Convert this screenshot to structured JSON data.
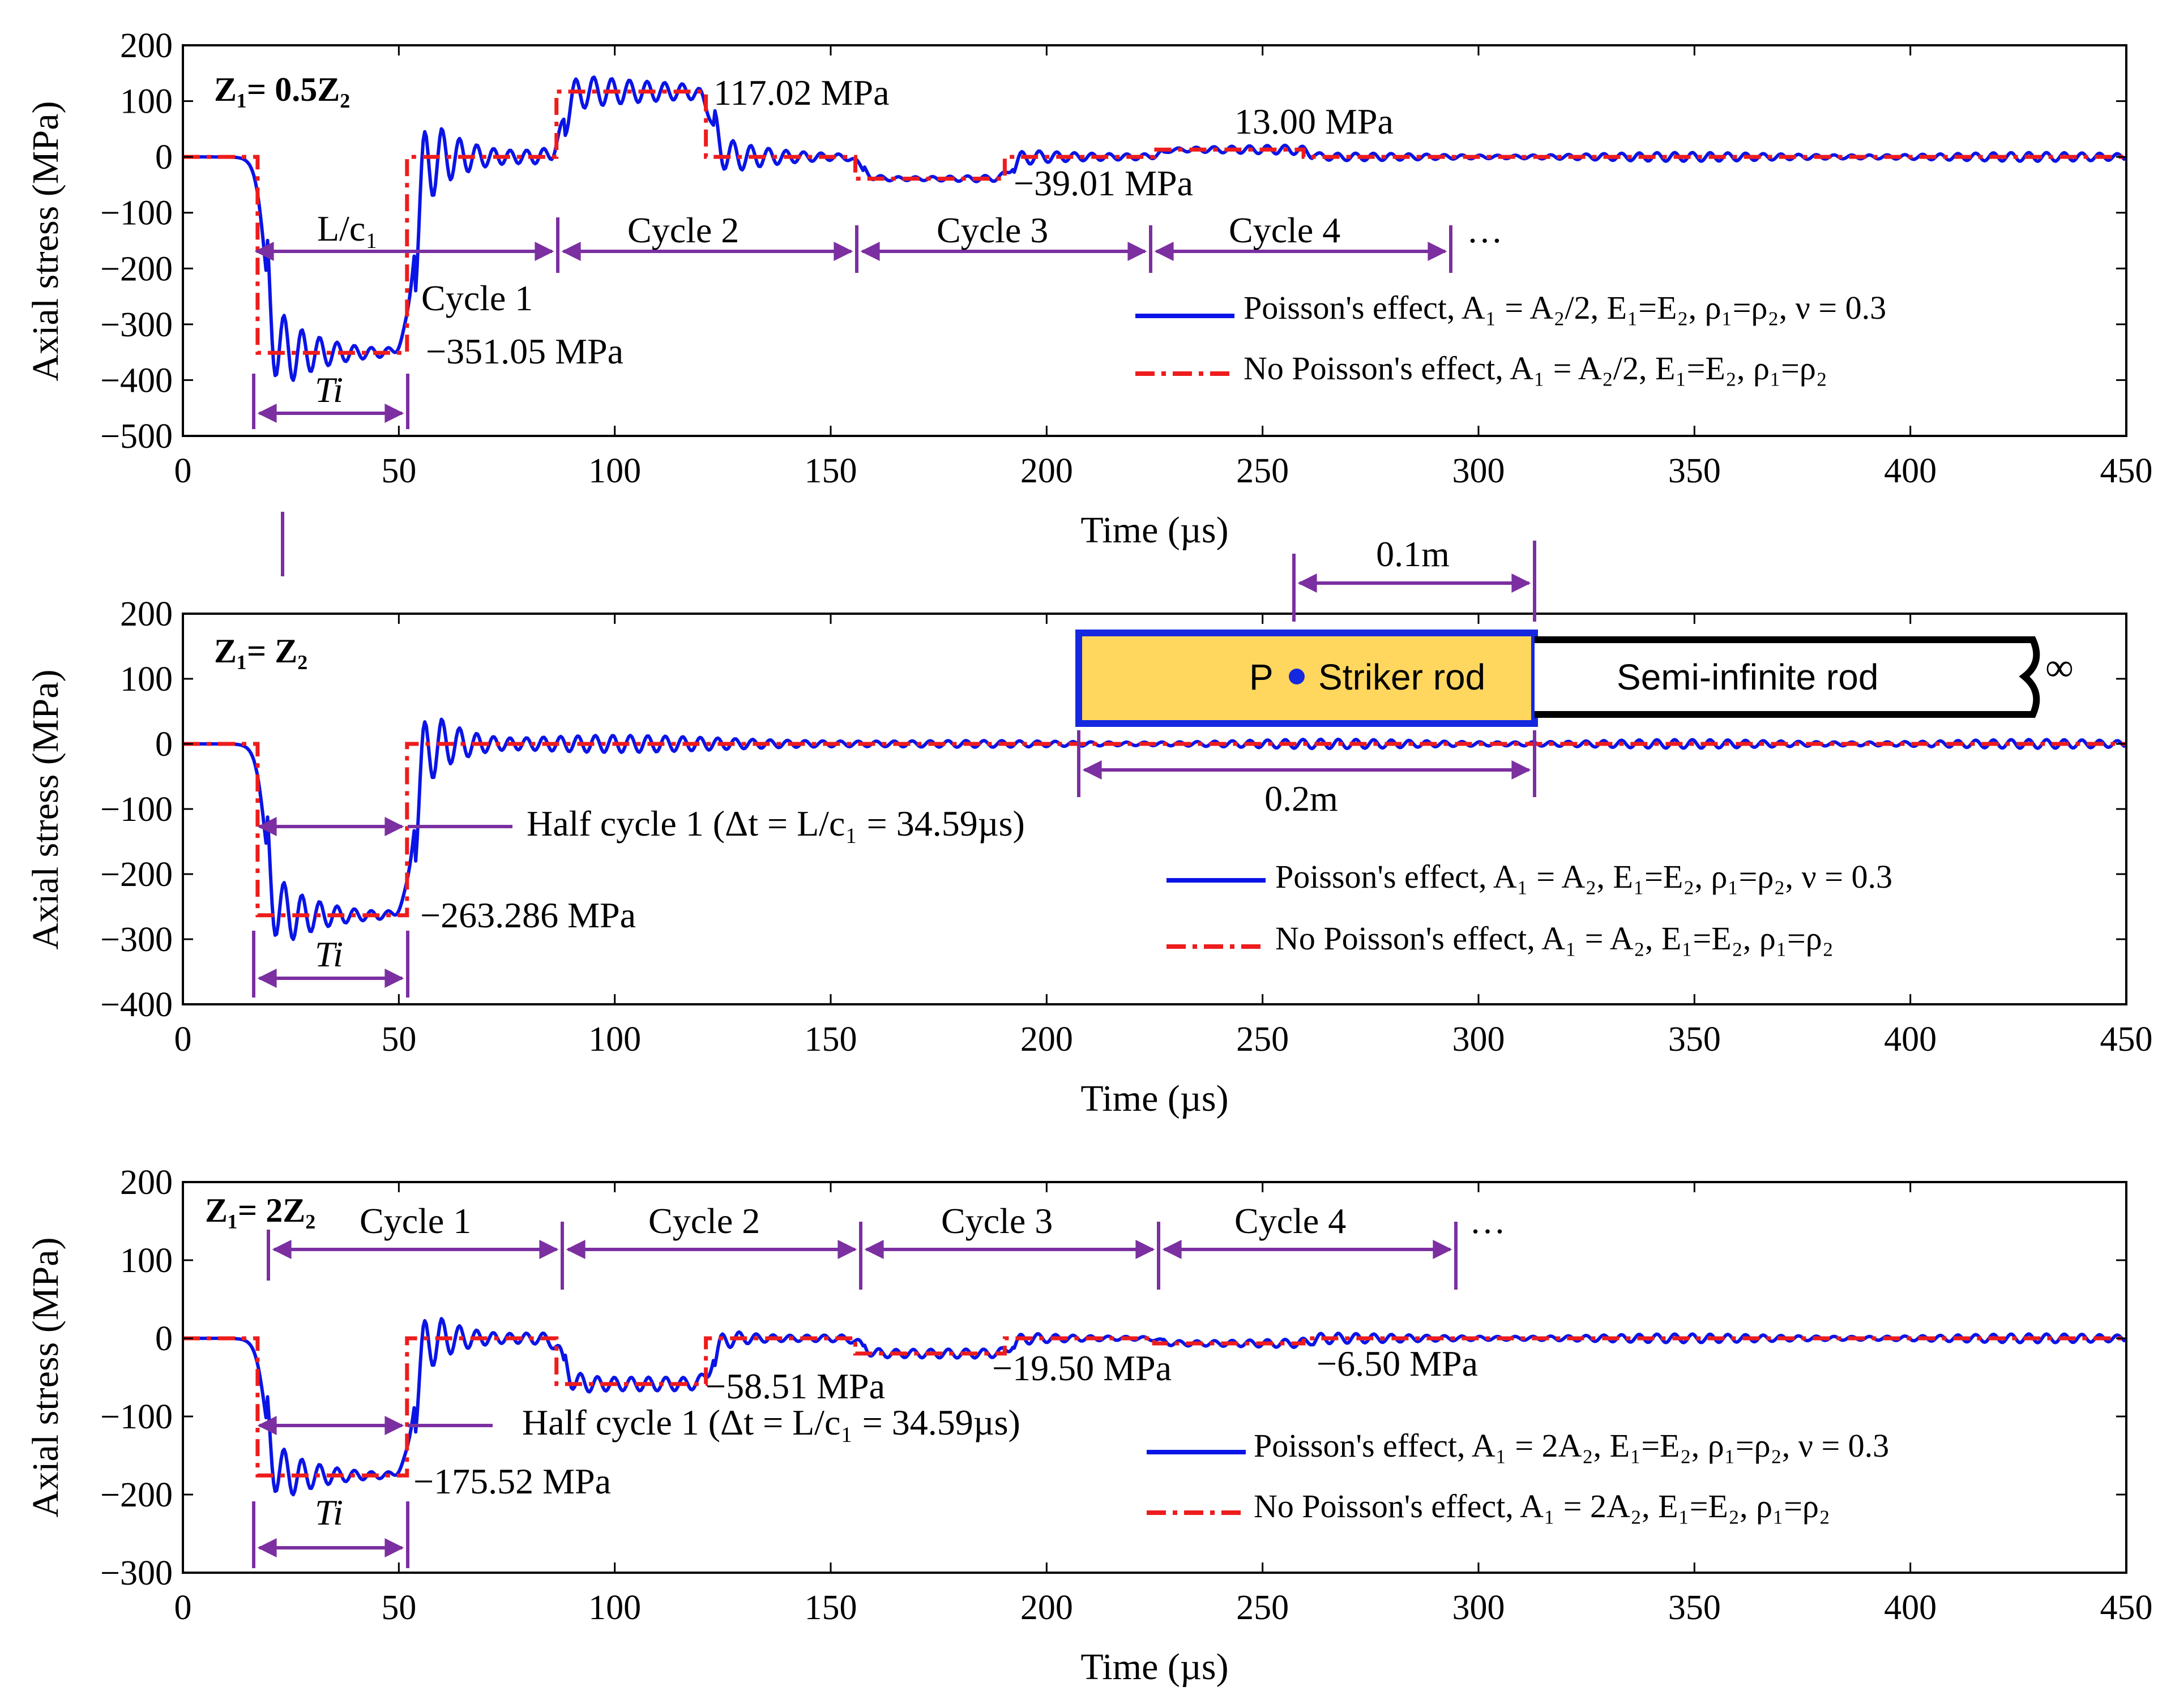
{
  "chart_data": [
    {
      "type": "line",
      "panel_label": "Z₁= 0.5Z₂",
      "xlabel": "Time (µs)",
      "ylabel": "Axial stress (MPa)",
      "xlim": [
        0,
        450
      ],
      "ylim": [
        -500,
        200
      ],
      "xticks": [
        0,
        50,
        100,
        150,
        200,
        250,
        300,
        350,
        400,
        450
      ],
      "yticks": [
        200,
        100,
        0,
        -100,
        -200,
        -300,
        -400,
        -500
      ],
      "xtick_labels": [
        "0",
        "50",
        "100",
        "150",
        "200",
        "250",
        "300",
        "350",
        "400",
        "450"
      ],
      "ytick_labels": [
        "200",
        "100",
        "0",
        "−100",
        "−200",
        "−300",
        "−400",
        "−500"
      ],
      "series": [
        {
          "name": "Poisson's effect, A₁ = A₂/2, E₁=E₂, ρ₁=ρ₂, ν = 0.3",
          "color": "#0a14e6",
          "style": "solid",
          "osc_amp": [
            30,
            28,
            18,
            10,
            8,
            5
          ],
          "osc_period_us": 4
        },
        {
          "name": "No Poisson's effect, A₁ = A₂/2, E₁=E₂, ρ₁=ρ₂",
          "color": "#ee1c1c",
          "style": "dashdot"
        }
      ],
      "steps": [
        [
          0,
          0
        ],
        [
          17.3,
          -351.05
        ],
        [
          51.9,
          0
        ],
        [
          86.5,
          117.02
        ],
        [
          121.1,
          0
        ],
        [
          155.7,
          -39.01
        ],
        [
          190.3,
          0
        ],
        [
          224.9,
          13.0
        ],
        [
          259.5,
          0
        ],
        [
          450,
          0
        ]
      ],
      "annotations": [
        "117.02 MPa",
        "−39.01 MPa",
        "13.00 MPa",
        "−351.05 MPa",
        "Cycle 1",
        "Cycle 2",
        "Cycle 3",
        "Cycle 4",
        "…"
      ],
      "Lc_label": "L/c₁",
      "Ti_label": "Ti",
      "cycle_bounds": [
        17.3,
        86.5,
        155.7,
        224.9,
        294.1
      ]
    },
    {
      "type": "line",
      "panel_label": "Z₁= Z₂",
      "xlabel": "Time (µs)",
      "ylabel": "Axial stress (MPa)",
      "xlim": [
        0,
        450
      ],
      "ylim": [
        -400,
        200
      ],
      "xticks": [
        0,
        50,
        100,
        150,
        200,
        250,
        300,
        350,
        400,
        450
      ],
      "yticks": [
        200,
        100,
        0,
        -100,
        -200,
        -300,
        -400
      ],
      "xtick_labels": [
        "0",
        "50",
        "100",
        "150",
        "200",
        "250",
        "300",
        "350",
        "400",
        "450"
      ],
      "ytick_labels": [
        "200",
        "100",
        "0",
        "−100",
        "−200",
        "−300",
        "−400"
      ],
      "series": [
        {
          "name": "Poisson's effect, A₁ = A₂, E₁=E₂, ρ₁=ρ₂, ν = 0.3",
          "color": "#0a14e6",
          "style": "solid"
        },
        {
          "name": "No Poisson's effect, A₁ = A₂, E₁=E₂, ρ₁=ρ₂",
          "color": "#ee1c1c",
          "style": "dashdot"
        }
      ],
      "steps": [
        [
          0,
          0
        ],
        [
          17.3,
          -263.286
        ],
        [
          51.9,
          0
        ],
        [
          450,
          0
        ]
      ],
      "annotations": [
        "Half cycle 1 (Δt = L/c₁ = 34.59µs)",
        "−263.286 MPa"
      ],
      "Ti_label": "Ti",
      "inset": {
        "striker_label": "Striker rod",
        "point_label": "P",
        "semi_label": "Semi-infinite rod",
        "inf_symbol": "∞",
        "dim_top": "0.1m",
        "dim_bottom": "0.2m"
      }
    },
    {
      "type": "line",
      "panel_label": "Z₁= 2Z₂",
      "xlabel": "Time (µs)",
      "ylabel": "Axial stress (MPa)",
      "xlim": [
        0,
        450
      ],
      "ylim": [
        -300,
        200
      ],
      "xticks": [
        0,
        50,
        100,
        150,
        200,
        250,
        300,
        350,
        400,
        450
      ],
      "yticks": [
        200,
        100,
        0,
        -100,
        -200,
        -300
      ],
      "xtick_labels": [
        "0",
        "50",
        "100",
        "150",
        "200",
        "250",
        "300",
        "350",
        "400",
        "450"
      ],
      "ytick_labels": [
        "200",
        "100",
        "0",
        "−100",
        "−200",
        "−300"
      ],
      "series": [
        {
          "name": "Poisson's effect, A₁ = 2A₂, E₁=E₂, ρ₁=ρ₂, ν = 0.3",
          "color": "#0a14e6",
          "style": "solid"
        },
        {
          "name": "No Poisson's effect, A₁ = 2A₂, E₁=E₂, ρ₁=ρ₂",
          "color": "#ee1c1c",
          "style": "dashdot"
        }
      ],
      "steps": [
        [
          0,
          0
        ],
        [
          17.3,
          -175.52
        ],
        [
          51.9,
          0
        ],
        [
          86.5,
          -58.51
        ],
        [
          121.1,
          0
        ],
        [
          155.7,
          -19.5
        ],
        [
          190.3,
          0
        ],
        [
          224.9,
          -6.5
        ],
        [
          259.5,
          0
        ],
        [
          450,
          0
        ]
      ],
      "annotations": [
        "−58.51 MPa",
        "−19.50 MPa",
        "−6.50 MPa",
        "Half cycle 1 (Δt = L/c₁ = 34.59µs)",
        "−175.52 MPa",
        "Cycle 1",
        "Cycle 2",
        "Cycle 3",
        "Cycle 4",
        "…"
      ],
      "Ti_label": "Ti",
      "cycle_bounds": [
        20,
        86.5,
        155.7,
        224.9,
        294.1
      ]
    }
  ]
}
